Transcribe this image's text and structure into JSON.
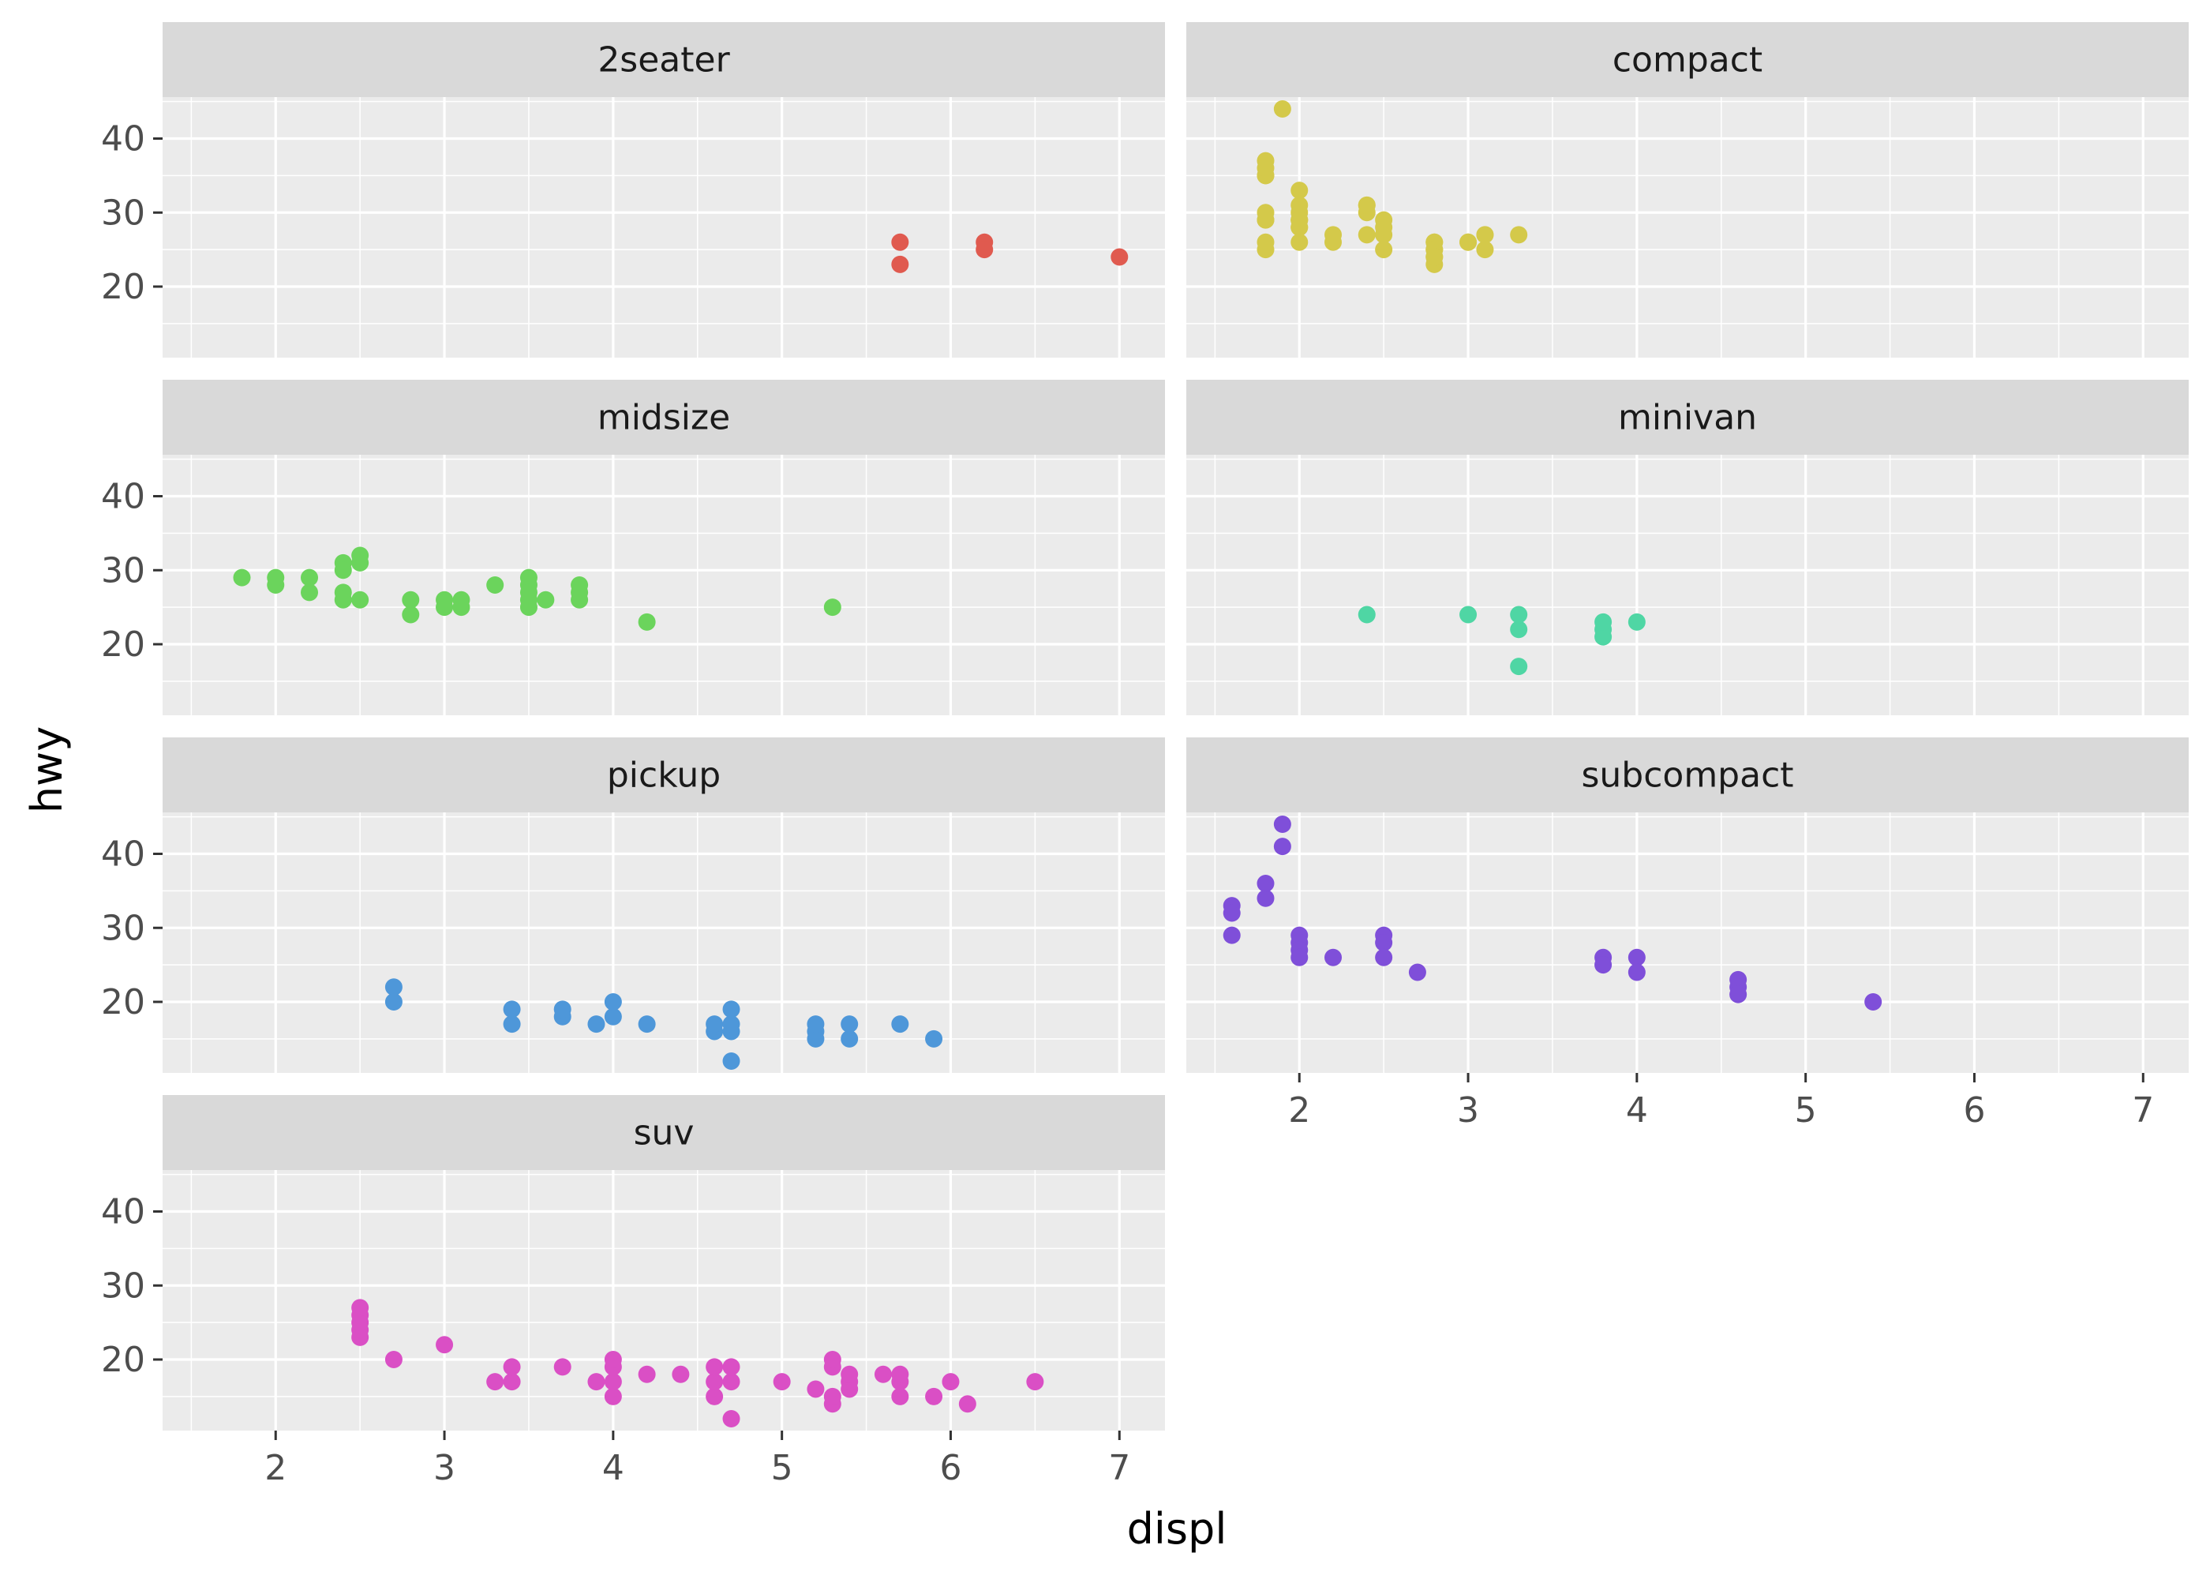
{
  "chart_data": {
    "type": "scatter",
    "xlabel": "displ",
    "ylabel": "hwy",
    "xlim": [
      1.33,
      7.27
    ],
    "ylim": [
      10.4,
      45.6
    ],
    "x_ticks": [
      "2",
      "3",
      "4",
      "5",
      "6",
      "7"
    ],
    "y_ticks": [
      "20",
      "30",
      "40"
    ],
    "grid": true,
    "facets": [
      {
        "label": "2seater",
        "color": "#E05A4F",
        "points": [
          [
            5.7,
            26
          ],
          [
            5.7,
            23
          ],
          [
            6.2,
            26
          ],
          [
            6.2,
            25
          ],
          [
            7.0,
            24
          ]
        ]
      },
      {
        "label": "compact",
        "color": "#D4C94A",
        "points": [
          [
            1.8,
            29
          ],
          [
            1.8,
            29
          ],
          [
            2.0,
            31
          ],
          [
            2.0,
            30
          ],
          [
            2.8,
            26
          ],
          [
            2.8,
            26
          ],
          [
            3.1,
            27
          ],
          [
            1.8,
            26
          ],
          [
            1.8,
            25
          ],
          [
            2.0,
            28
          ],
          [
            2.0,
            29
          ],
          [
            2.8,
            25
          ],
          [
            2.8,
            25
          ],
          [
            3.1,
            25
          ],
          [
            2.4,
            27
          ],
          [
            2.4,
            30
          ],
          [
            3.1,
            27
          ],
          [
            3.3,
            27
          ],
          [
            1.8,
            35
          ],
          [
            1.8,
            37
          ],
          [
            1.8,
            35
          ],
          [
            1.9,
            44
          ],
          [
            2.0,
            29
          ],
          [
            2.0,
            26
          ],
          [
            2.0,
            29
          ],
          [
            2.5,
            29
          ],
          [
            2.5,
            28
          ],
          [
            2.8,
            23
          ],
          [
            2.8,
            24
          ],
          [
            2.2,
            26
          ],
          [
            2.2,
            27
          ],
          [
            2.4,
            31
          ],
          [
            2.4,
            31
          ],
          [
            3.0,
            26
          ],
          [
            3.0,
            26
          ],
          [
            2.0,
            33
          ],
          [
            2.0,
            28
          ],
          [
            2.5,
            25
          ],
          [
            2.5,
            27
          ],
          [
            2.8,
            24
          ],
          [
            1.8,
            30
          ],
          [
            1.8,
            36
          ]
        ]
      },
      {
        "label": "midsize",
        "color": "#6BD45C",
        "points": [
          [
            1.8,
            29
          ],
          [
            2.0,
            28
          ],
          [
            2.0,
            29
          ],
          [
            2.2,
            27
          ],
          [
            2.2,
            29
          ],
          [
            2.4,
            27
          ],
          [
            2.4,
            26
          ],
          [
            2.4,
            31
          ],
          [
            2.4,
            30
          ],
          [
            2.5,
            26
          ],
          [
            2.5,
            31
          ],
          [
            2.5,
            32
          ],
          [
            2.8,
            26
          ],
          [
            2.8,
            24
          ],
          [
            3.0,
            26
          ],
          [
            3.0,
            25
          ],
          [
            3.1,
            26
          ],
          [
            3.1,
            25
          ],
          [
            3.3,
            28
          ],
          [
            3.5,
            29
          ],
          [
            3.5,
            28
          ],
          [
            3.5,
            26
          ],
          [
            3.5,
            25
          ],
          [
            3.5,
            27
          ],
          [
            3.6,
            26
          ],
          [
            3.8,
            28
          ],
          [
            3.8,
            26
          ],
          [
            3.8,
            27
          ],
          [
            4.2,
            23
          ],
          [
            5.3,
            25
          ]
        ]
      },
      {
        "label": "minivan",
        "color": "#4FD6A4",
        "points": [
          [
            2.4,
            24
          ],
          [
            3.0,
            24
          ],
          [
            3.3,
            22
          ],
          [
            3.3,
            24
          ],
          [
            3.3,
            17
          ],
          [
            3.8,
            22
          ],
          [
            3.8,
            21
          ],
          [
            3.8,
            23
          ],
          [
            4.0,
            23
          ]
        ]
      },
      {
        "label": "pickup",
        "color": "#4E97D9",
        "points": [
          [
            2.7,
            20
          ],
          [
            2.7,
            22
          ],
          [
            3.4,
            17
          ],
          [
            3.4,
            19
          ],
          [
            3.7,
            18
          ],
          [
            3.7,
            19
          ],
          [
            3.9,
            17
          ],
          [
            4.0,
            18
          ],
          [
            4.0,
            20
          ],
          [
            4.2,
            17
          ],
          [
            4.6,
            16
          ],
          [
            4.6,
            17
          ],
          [
            4.7,
            12
          ],
          [
            4.7,
            16
          ],
          [
            4.7,
            17
          ],
          [
            4.7,
            19
          ],
          [
            5.2,
            15
          ],
          [
            5.2,
            16
          ],
          [
            5.2,
            17
          ],
          [
            5.4,
            15
          ],
          [
            5.4,
            17
          ],
          [
            5.7,
            17
          ],
          [
            5.9,
            15
          ]
        ]
      },
      {
        "label": "subcompact",
        "color": "#7F4FD9",
        "points": [
          [
            1.6,
            33
          ],
          [
            1.6,
            32
          ],
          [
            1.6,
            29
          ],
          [
            1.8,
            34
          ],
          [
            1.8,
            36
          ],
          [
            1.9,
            41
          ],
          [
            1.9,
            44
          ],
          [
            2.0,
            29
          ],
          [
            2.0,
            28
          ],
          [
            2.0,
            27
          ],
          [
            2.0,
            26
          ],
          [
            2.2,
            26
          ],
          [
            2.5,
            29
          ],
          [
            2.5,
            28
          ],
          [
            2.5,
            26
          ],
          [
            2.7,
            24
          ],
          [
            3.8,
            26
          ],
          [
            3.8,
            25
          ],
          [
            4.0,
            26
          ],
          [
            4.0,
            24
          ],
          [
            4.6,
            23
          ],
          [
            4.6,
            22
          ],
          [
            4.6,
            21
          ],
          [
            5.4,
            20
          ]
        ]
      },
      {
        "label": "suv",
        "color": "#DA4FC5",
        "points": [
          [
            2.5,
            23
          ],
          [
            2.5,
            24
          ],
          [
            2.5,
            25
          ],
          [
            2.5,
            26
          ],
          [
            2.5,
            27
          ],
          [
            2.7,
            20
          ],
          [
            3.0,
            22
          ],
          [
            3.3,
            17
          ],
          [
            3.4,
            17
          ],
          [
            3.4,
            19
          ],
          [
            3.7,
            19
          ],
          [
            3.9,
            17
          ],
          [
            4.0,
            15
          ],
          [
            4.0,
            17
          ],
          [
            4.0,
            19
          ],
          [
            4.0,
            20
          ],
          [
            4.2,
            18
          ],
          [
            4.4,
            18
          ],
          [
            4.6,
            15
          ],
          [
            4.6,
            17
          ],
          [
            4.6,
            19
          ],
          [
            4.7,
            12
          ],
          [
            4.7,
            17
          ],
          [
            4.7,
            19
          ],
          [
            5.0,
            17
          ],
          [
            5.2,
            16
          ],
          [
            5.3,
            14
          ],
          [
            5.3,
            15
          ],
          [
            5.3,
            19
          ],
          [
            5.3,
            20
          ],
          [
            5.4,
            16
          ],
          [
            5.4,
            17
          ],
          [
            5.4,
            18
          ],
          [
            5.6,
            18
          ],
          [
            5.7,
            15
          ],
          [
            5.7,
            17
          ],
          [
            5.7,
            18
          ],
          [
            5.9,
            15
          ],
          [
            6.0,
            17
          ],
          [
            6.1,
            14
          ],
          [
            6.5,
            17
          ]
        ]
      }
    ]
  }
}
